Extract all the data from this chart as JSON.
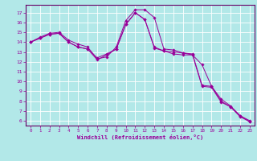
{
  "xlabel": "Windchill (Refroidissement éolien,°C)",
  "bg_color": "#b2e8e8",
  "line_color": "#990099",
  "grid_color": "#ffffff",
  "axis_color": "#660066",
  "xlim": [
    -0.5,
    23.5
  ],
  "ylim": [
    5.5,
    17.8
  ],
  "yticks": [
    6,
    7,
    8,
    9,
    10,
    11,
    12,
    13,
    14,
    15,
    16,
    17
  ],
  "xticks": [
    0,
    1,
    2,
    3,
    4,
    5,
    6,
    7,
    8,
    9,
    10,
    11,
    12,
    13,
    14,
    15,
    16,
    17,
    18,
    19,
    20,
    21,
    22,
    23
  ],
  "line1": {
    "x": [
      0,
      1,
      2,
      3,
      4,
      5,
      6,
      7,
      8,
      9,
      10,
      11,
      12,
      13,
      14,
      15,
      16,
      17,
      18,
      19,
      20,
      21,
      22,
      23
    ],
    "y": [
      14.0,
      14.5,
      14.9,
      15.0,
      14.2,
      13.8,
      13.5,
      12.3,
      12.5,
      13.5,
      16.2,
      17.3,
      17.3,
      16.5,
      13.3,
      13.2,
      12.9,
      12.7,
      11.7,
      9.5,
      8.2,
      7.5,
      6.5,
      6.0
    ]
  },
  "line2": {
    "x": [
      0,
      1,
      2,
      3,
      4,
      5,
      6,
      7,
      8,
      9,
      10,
      11,
      12,
      13,
      14,
      15,
      16,
      17,
      18,
      19,
      20,
      21,
      22,
      23
    ],
    "y": [
      14.0,
      14.4,
      14.8,
      14.9,
      14.0,
      13.5,
      13.3,
      12.4,
      12.8,
      13.3,
      15.8,
      17.0,
      16.3,
      13.5,
      13.1,
      13.0,
      12.9,
      12.8,
      9.6,
      9.5,
      8.0,
      7.4,
      6.5,
      5.9
    ]
  },
  "line3": {
    "x": [
      0,
      1,
      2,
      3,
      4,
      5,
      6,
      7,
      8,
      9,
      10,
      11,
      12,
      13,
      14,
      15,
      16,
      17,
      18,
      19,
      20,
      21,
      22,
      23
    ],
    "y": [
      14.0,
      14.4,
      14.8,
      14.9,
      14.0,
      13.5,
      13.3,
      12.2,
      12.7,
      13.3,
      15.8,
      17.0,
      16.3,
      13.4,
      13.1,
      12.8,
      12.7,
      12.7,
      9.5,
      9.4,
      7.9,
      7.4,
      6.4,
      5.9
    ]
  }
}
